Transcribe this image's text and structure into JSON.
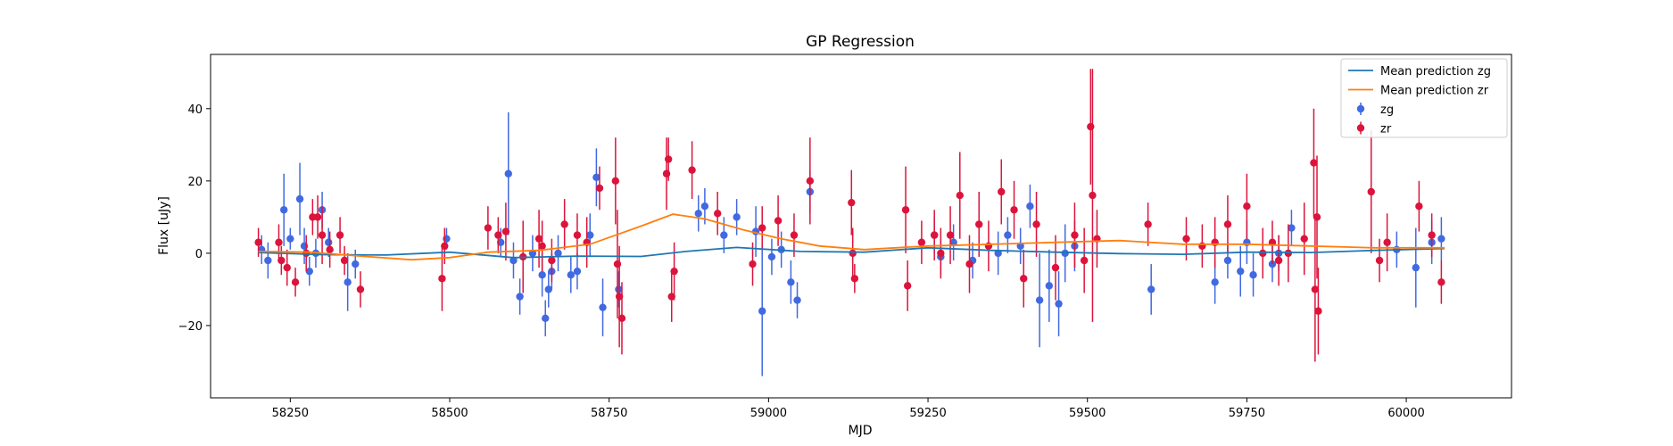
{
  "chart_data": {
    "type": "scatter",
    "title": "GP Regression",
    "xlabel": "MJD",
    "ylabel": "Flux [uJy]",
    "xlim": [
      58125,
      60165
    ],
    "ylim": [
      -40,
      55
    ],
    "xticks": [
      58250,
      58500,
      58750,
      59000,
      59250,
      59500,
      59750,
      60000
    ],
    "yticks": [
      -20,
      0,
      20,
      40
    ],
    "tick_labels_y": [
      "−20",
      "0",
      "20",
      "40"
    ],
    "grid": false,
    "legend_position": "top-right",
    "colors": {
      "zg": "#4169e1",
      "zr": "#dc143c",
      "mean_zg": "#1f77b4",
      "mean_zr": "#ff7f0e"
    },
    "mean_lines": [
      {
        "name": "Mean prediction zg",
        "color": "#1f77b4",
        "x": [
          58200,
          58300,
          58400,
          58500,
          58600,
          58700,
          58800,
          58870,
          58950,
          59050,
          59150,
          59250,
          59350,
          59450,
          59550,
          59650,
          59750,
          59850,
          59950,
          60060
        ],
        "y": [
          0.2,
          -0.4,
          -0.5,
          0.3,
          -1.2,
          -0.8,
          -0.9,
          0.5,
          1.6,
          0.5,
          0.3,
          1.5,
          0.8,
          0.3,
          -0.1,
          -0.3,
          0.3,
          0.2,
          0.8,
          1.3
        ]
      },
      {
        "name": "Mean prediction zr",
        "color": "#ff7f0e",
        "x": [
          58200,
          58280,
          58360,
          58440,
          58500,
          58560,
          58640,
          58720,
          58800,
          58850,
          58900,
          58960,
          59020,
          59080,
          59150,
          59250,
          59350,
          59450,
          59550,
          59650,
          59750,
          59850,
          59950,
          60060
        ],
        "y": [
          0.5,
          0.3,
          -0.8,
          -1.8,
          -1.2,
          0.3,
          0.8,
          2.5,
          7.5,
          10.8,
          9.5,
          6.5,
          4.0,
          2.0,
          1.0,
          2.0,
          2.5,
          3.0,
          3.5,
          2.5,
          2.5,
          2.0,
          1.5,
          1.5
        ]
      }
    ],
    "series": [
      {
        "name": "zg",
        "color": "#4169e1",
        "x": [
          58205,
          58215,
          58240,
          58250,
          58265,
          58272,
          58280,
          58290,
          58300,
          58310,
          58340,
          58352,
          58495,
          58580,
          58592,
          58600,
          58610,
          58630,
          58645,
          58650,
          58655,
          58660,
          58670,
          58690,
          58700,
          58720,
          58730,
          58740,
          58765,
          58890,
          58900,
          58930,
          58950,
          58980,
          58990,
          59005,
          59020,
          59035,
          59045,
          59065,
          59260,
          59270,
          59290,
          59320,
          59360,
          59375,
          59395,
          59410,
          59425,
          59440,
          59455,
          59465,
          59480,
          59600,
          59700,
          59720,
          59740,
          59750,
          59760,
          59790,
          59800,
          59820,
          59985,
          60015,
          60040,
          60055
        ],
        "y": [
          1,
          -2,
          12,
          4,
          15,
          2,
          -5,
          0,
          12,
          3,
          -8,
          -3,
          4,
          3,
          22,
          -2,
          -12,
          0,
          -6,
          -18,
          -10,
          -5,
          0,
          -6,
          -5,
          5,
          21,
          -15,
          -10,
          11,
          13,
          5,
          10,
          6,
          -16,
          -1,
          1,
          -8,
          -13,
          17,
          5,
          -1,
          3,
          -2,
          0,
          5,
          2,
          13,
          -13,
          -9,
          -14,
          0,
          2,
          -10,
          -8,
          -2,
          -5,
          3,
          -6,
          -3,
          0,
          7,
          1,
          -4,
          3,
          4
        ],
        "err": [
          4,
          5,
          10,
          3,
          10,
          5,
          4,
          4,
          5,
          4,
          8,
          4,
          3,
          4,
          17,
          5,
          5,
          5,
          6,
          5,
          5,
          5,
          5,
          5,
          5,
          6,
          8,
          8,
          5,
          5,
          5,
          5,
          5,
          7,
          18,
          5,
          5,
          6,
          5,
          6,
          5,
          5,
          5,
          5,
          6,
          5,
          5,
          6,
          13,
          10,
          9,
          8,
          7,
          7,
          6,
          5,
          7,
          6,
          6,
          5,
          5,
          5,
          5,
          11,
          6,
          6
        ]
      },
      {
        "name": "zr",
        "color": "#dc143c",
        "x": [
          58200,
          58232,
          58236,
          58245,
          58258,
          58275,
          58285,
          58293,
          58300,
          58312,
          58328,
          58335,
          58360,
          58488,
          58492,
          58560,
          58576,
          58588,
          58615,
          58640,
          58645,
          58660,
          58680,
          58700,
          58715,
          58735,
          58760,
          58763,
          58766,
          58770,
          58840,
          58843,
          58848,
          58852,
          58880,
          58920,
          58975,
          58990,
          59015,
          59040,
          59065,
          59130,
          59132,
          59135,
          59215,
          59218,
          59240,
          59260,
          59270,
          59285,
          59300,
          59315,
          59330,
          59345,
          59365,
          59385,
          59400,
          59420,
          59450,
          59480,
          59495,
          59505,
          59508,
          59515,
          59595,
          59655,
          59680,
          59700,
          59720,
          59750,
          59775,
          59790,
          59800,
          59815,
          59840,
          59855,
          59857,
          59860,
          59862,
          59945,
          59958,
          59970,
          60020,
          60040,
          60055
        ],
        "y": [
          3,
          3,
          -2,
          -4,
          -8,
          0,
          10,
          10,
          5,
          1,
          5,
          -2,
          -10,
          -7,
          2,
          7,
          5,
          6,
          -1,
          4,
          2,
          -2,
          8,
          5,
          3,
          18,
          20,
          -3,
          -12,
          -18,
          22,
          26,
          -12,
          -5,
          23,
          11,
          -3,
          7,
          9,
          5,
          20,
          14,
          0,
          -7,
          12,
          -9,
          3,
          5,
          0,
          5,
          16,
          -3,
          8,
          2,
          17,
          12,
          -7,
          8,
          -4,
          5,
          -2,
          35,
          16,
          4,
          8,
          4,
          2,
          3,
          8,
          13,
          0,
          3,
          -2,
          0,
          4,
          25,
          -10,
          10,
          -16,
          17,
          -2,
          3,
          13,
          5,
          -8
        ],
        "err": [
          4,
          5,
          4,
          5,
          4,
          5,
          5,
          6,
          8,
          5,
          5,
          4,
          5,
          9,
          5,
          6,
          5,
          8,
          10,
          8,
          7,
          6,
          7,
          6,
          7,
          6,
          12,
          15,
          14,
          10,
          10,
          6,
          7,
          8,
          8,
          6,
          6,
          6,
          7,
          6,
          12,
          9,
          7,
          4,
          12,
          7,
          6,
          7,
          7,
          8,
          12,
          8,
          9,
          7,
          9,
          8,
          8,
          9,
          9,
          9,
          9,
          16,
          35,
          8,
          6,
          6,
          6,
          7,
          8,
          9,
          7,
          6,
          7,
          8,
          10,
          15,
          20,
          17,
          12,
          17,
          6,
          8,
          7,
          6,
          6
        ]
      }
    ]
  }
}
